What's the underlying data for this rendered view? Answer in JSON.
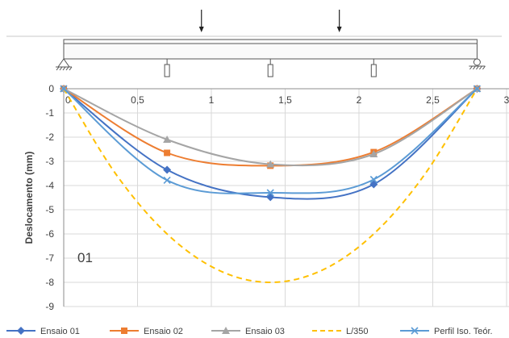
{
  "chart_data": {
    "type": "line",
    "ylabel": "Deslocamento (mm)",
    "xlim": [
      0,
      3
    ],
    "ylim": [
      -9,
      0
    ],
    "x_ticks": [
      "0",
      "0,5",
      "1",
      "1,5",
      "2",
      "2,5",
      "3"
    ],
    "y_ticks": [
      "0",
      "-1",
      "-2",
      "-3",
      "-4",
      "-5",
      "-6",
      "-7",
      "-8",
      "-9"
    ],
    "grid": true,
    "legend_position": "bottom",
    "annotation": "01",
    "series": [
      {
        "name": "Ensaio 01",
        "color": "#4472c4",
        "marker": "diamond",
        "dash": "solid",
        "x": [
          0,
          0.7,
          1.4,
          2.1,
          2.8
        ],
        "y": [
          0,
          -3.35,
          -4.48,
          -3.95,
          0
        ]
      },
      {
        "name": "Ensaio 02",
        "color": "#ed7d31",
        "marker": "square",
        "dash": "solid",
        "x": [
          0,
          0.7,
          1.4,
          2.1,
          2.8
        ],
        "y": [
          0,
          -2.65,
          -3.18,
          -2.62,
          0
        ]
      },
      {
        "name": "Ensaio 03",
        "color": "#a5a5a5",
        "marker": "triangle",
        "dash": "solid",
        "x": [
          0,
          0.7,
          1.4,
          2.1,
          2.8
        ],
        "y": [
          0,
          -2.1,
          -3.12,
          -2.7,
          0
        ]
      },
      {
        "name": "L/350",
        "color": "#ffc000",
        "marker": "none",
        "dash": "dashed",
        "x": [
          0,
          0.35,
          0.7,
          1.05,
          1.4,
          1.75,
          2.1,
          2.45,
          2.8
        ],
        "y": [
          0,
          -3.5,
          -6.0,
          -7.5,
          -8.0,
          -7.5,
          -6.0,
          -3.5,
          0
        ]
      },
      {
        "name": "Perfil Iso. Teór.",
        "color": "#5b9bd5",
        "marker": "x",
        "dash": "solid",
        "x": [
          0,
          0.7,
          1.4,
          2.1,
          2.8
        ],
        "y": [
          0,
          -3.78,
          -4.3,
          -3.75,
          0
        ]
      }
    ],
    "beam_diagram": {
      "span": 2.8,
      "load_positions": [
        0.933,
        1.867
      ],
      "gauge_positions": [
        0.7,
        1.4,
        2.1
      ]
    }
  }
}
